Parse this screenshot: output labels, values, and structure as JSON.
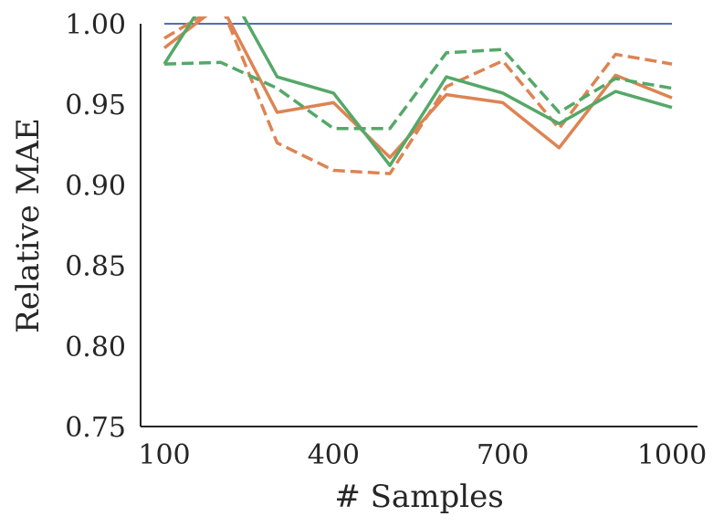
{
  "chart_data": {
    "type": "line",
    "title": "",
    "xlabel": "# Samples",
    "ylabel": "Relative MAE",
    "xlim": [
      100,
      1000
    ],
    "ylim": [
      0.75,
      1.0
    ],
    "xticks": [
      100,
      400,
      700,
      1000
    ],
    "xtick_labels": [
      "100",
      "400",
      "700",
      "1000"
    ],
    "yticks": [
      0.75,
      0.8,
      0.85,
      0.9,
      0.95,
      1.0
    ],
    "ytick_labels": [
      "0.75",
      "0.80",
      "0.85",
      "0.90",
      "0.95",
      "1.00"
    ],
    "grid": false,
    "legend": "none",
    "x": [
      100,
      200,
      300,
      400,
      500,
      600,
      700,
      800,
      900,
      1000
    ],
    "series": [
      {
        "color": "#4c72b0",
        "style": "solid",
        "values": [
          1.0,
          1.0,
          1.0,
          1.0,
          1.0,
          1.0,
          1.0,
          1.0,
          1.0,
          1.0
        ]
      },
      {
        "color": "#dd8452",
        "style": "solid",
        "values": [
          0.985,
          1.012,
          0.945,
          0.951,
          0.917,
          0.956,
          0.951,
          0.923,
          0.968,
          0.954
        ]
      },
      {
        "color": "#dd8452",
        "style": "dashed",
        "values": [
          0.991,
          1.012,
          0.926,
          0.909,
          0.907,
          0.961,
          0.977,
          0.935,
          0.981,
          0.975
        ]
      },
      {
        "color": "#55a868",
        "style": "solid",
        "values": [
          0.975,
          1.03,
          0.967,
          0.957,
          0.912,
          0.967,
          0.957,
          0.938,
          0.958,
          0.948
        ]
      },
      {
        "color": "#55a868",
        "style": "dashed",
        "values": [
          0.975,
          0.976,
          0.96,
          0.935,
          0.935,
          0.982,
          0.984,
          0.945,
          0.966,
          0.96
        ]
      }
    ]
  }
}
